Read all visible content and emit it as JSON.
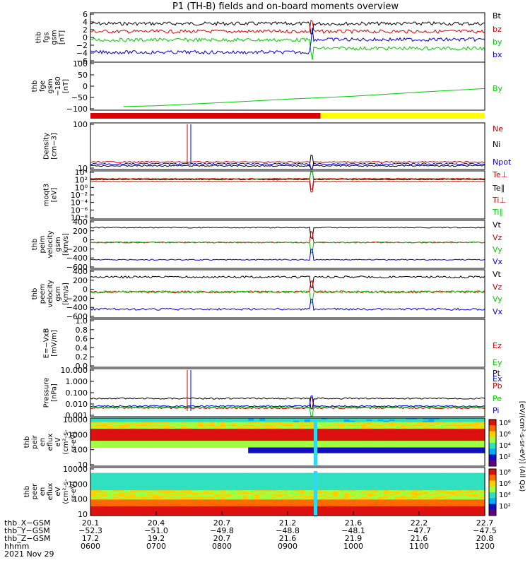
{
  "title": "P1 (TH-B) fields and on-board moments overview",
  "colors": {
    "black": "#000000",
    "red": "#dd0000",
    "green": "#00cc00",
    "blue": "#0000dd",
    "yellow": "#ffff00",
    "cyan": "#00c8ff"
  },
  "colorbar_label": "[eV/(cm²-s-sr-eV)] (All Qs)",
  "colorbar_ticks": [
    "10⁸",
    "10⁶",
    "10⁴",
    "10²",
    "10⁸",
    "10⁶",
    "10⁴",
    "10²"
  ],
  "chart_data": [
    {
      "type": "line",
      "panel": "fgs_bxyz",
      "ylabel": [
        "thb",
        "fgs",
        "gsm",
        "[nT]"
      ],
      "ylim": [
        -6,
        6
      ],
      "ticks": [
        "6",
        "4",
        "2",
        "0",
        "−2",
        "−4",
        "−6"
      ],
      "series": [
        {
          "name": "Bt",
          "color": "#000000"
        },
        {
          "name": "bz",
          "color": "#dd0000"
        },
        {
          "name": "by",
          "color": "#00cc00"
        },
        {
          "name": "bx",
          "color": "#0000dd"
        }
      ]
    },
    {
      "type": "line",
      "panel": "fge_by",
      "ylabel": [
        "thb",
        "fge",
        "gsm",
        "−180",
        "[nT]"
      ],
      "ylim": [
        -130,
        110
      ],
      "ticks": [
        "100",
        "50",
        "0",
        "−50",
        "−100"
      ],
      "series": [
        {
          "name": "By",
          "color": "#00cc00",
          "x": [
            0.5,
            1,
            2,
            3,
            4,
            5,
            6
          ],
          "values": [
            -112,
            -108,
            -92,
            -75,
            -60,
            -40,
            -22
          ]
        }
      ]
    },
    {
      "type": "bar",
      "panel": "mode_bar",
      "segments": [
        {
          "from": "0600",
          "to": "0930",
          "color": "#dd0000"
        },
        {
          "from": "0930",
          "to": "1200",
          "color": "#ffff00"
        }
      ]
    },
    {
      "type": "line",
      "panel": "density",
      "ylabel": [
        "Density",
        "[cm−3]"
      ],
      "yscale": "log",
      "ticks": [
        "100",
        "10"
      ],
      "series": [
        {
          "name": "Ne",
          "color": "#dd0000"
        },
        {
          "name": "Ni",
          "color": "#000000"
        },
        {
          "name": "Npot",
          "color": "#0000dd"
        }
      ]
    },
    {
      "type": "line",
      "panel": "temperature",
      "ylabel": [
        "moqt3",
        "[eV]"
      ],
      "yscale": "log",
      "ticks": [
        "10⁴",
        "10²",
        "10⁰",
        "10⁻²",
        "10⁻⁴",
        "10⁻⁶",
        "10⁻⁸"
      ],
      "series": [
        {
          "name": "Te⊥",
          "color": "#dd0000"
        },
        {
          "name": "Te∥",
          "color": "#000000"
        },
        {
          "name": "Ti⊥",
          "color": "#dd0000"
        },
        {
          "name": "Ti∥",
          "color": "#00cc00"
        }
      ]
    },
    {
      "type": "line",
      "panel": "peim_velocity",
      "ylabel": [
        "thb",
        "peim",
        "velocity",
        "gsm",
        "[km/s]"
      ],
      "ylim": [
        -600,
        400
      ],
      "ticks": [
        "400",
        "200",
        "0",
        "−200",
        "−400",
        "−600"
      ],
      "series": [
        {
          "name": "Vt",
          "color": "#000000"
        },
        {
          "name": "Vz",
          "color": "#dd0000"
        },
        {
          "name": "Vy",
          "color": "#00cc00"
        },
        {
          "name": "Vx",
          "color": "#0000dd"
        }
      ]
    },
    {
      "type": "line",
      "panel": "peem_velocity",
      "ylabel": [
        "thb",
        "peem",
        "velocity",
        "gsm",
        "[km/s]"
      ],
      "ylim": [
        -600,
        400
      ],
      "ticks": [
        "400",
        "200",
        "0",
        "−200",
        "−400",
        "−600"
      ],
      "series": [
        {
          "name": "Vt",
          "color": "#000000"
        },
        {
          "name": "Vz",
          "color": "#dd0000"
        },
        {
          "name": "Vy",
          "color": "#00cc00"
        },
        {
          "name": "Vx",
          "color": "#0000dd"
        }
      ]
    },
    {
      "type": "line",
      "panel": "efield",
      "ylabel": [
        "E=−VxB",
        "[mV/m]"
      ],
      "ylim": [
        0,
        1
      ],
      "ticks": [
        "1.0",
        "0.8",
        "0.6",
        "0.4",
        "0.2",
        "0.0"
      ],
      "series": [
        {
          "name": "Ez",
          "color": "#dd0000"
        },
        {
          "name": "Ey",
          "color": "#00cc00"
        },
        {
          "name": "Ex",
          "color": "#0000dd"
        }
      ]
    },
    {
      "type": "line",
      "panel": "pressure",
      "ylabel": [
        "Pressure",
        "[nPa]"
      ],
      "yscale": "log",
      "ticks": [
        "10.000",
        "1.000",
        "0.100",
        "0.010",
        "0.001"
      ],
      "series": [
        {
          "name": "Pt",
          "color": "#000000"
        },
        {
          "name": "Pb",
          "color": "#dd0000"
        },
        {
          "name": "Pe",
          "color": "#00cc00"
        },
        {
          "name": "Pi",
          "color": "#0000dd"
        }
      ]
    },
    {
      "type": "heatmap",
      "panel": "peir_spectrogram",
      "ylabel": [
        "thb",
        "peir",
        "en",
        "eflux",
        "eV",
        "(cm²-s-",
        "sr-eV)"
      ],
      "yscale": "log",
      "ticks": [
        "10000",
        "1000",
        "100",
        "10"
      ]
    },
    {
      "type": "heatmap",
      "panel": "peer_spectrogram",
      "ylabel": [
        "thb",
        "peer",
        "en",
        "eflux",
        "eV",
        "(cm²-s-",
        "sr-eV)"
      ],
      "yscale": "log",
      "ticks": [
        "10000",
        "1000",
        "100",
        "10"
      ]
    }
  ],
  "xaxis": {
    "rows": [
      {
        "label": "thb_X−GSM",
        "values": [
          "20.1",
          "20.4",
          "20.7",
          "21.2",
          "21.6",
          "22.2",
          "22.7"
        ]
      },
      {
        "label": "thb_Y−GSM",
        "values": [
          "−52.3",
          "−51.0",
          "−49.8",
          "−48.8",
          "−48.1",
          "−47.7",
          "−47.5"
        ]
      },
      {
        "label": "thb_Z−GSM",
        "values": [
          "17.2",
          "19.2",
          "20.7",
          "21.6",
          "21.9",
          "21.6",
          "20.8"
        ]
      },
      {
        "label": "hhmm",
        "values": [
          "0600",
          "0700",
          "0800",
          "0900",
          "1000",
          "1100",
          "1200"
        ]
      }
    ],
    "date": "2021 Nov 29"
  }
}
